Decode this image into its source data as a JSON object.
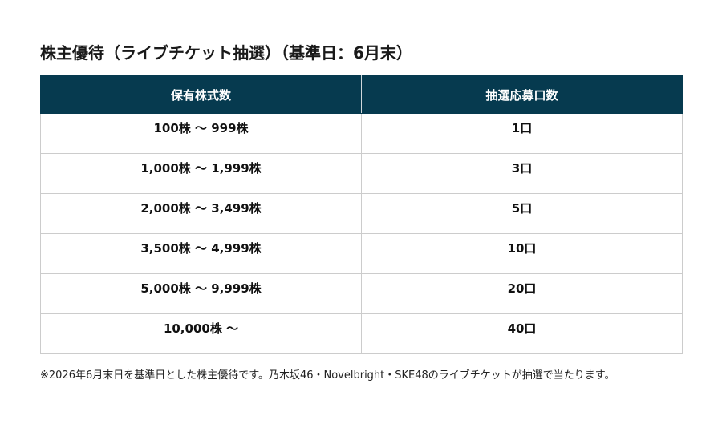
{
  "title": "株主優待（ライブチケット抽選）（基準日：6月末）",
  "table": {
    "headers": [
      "保有株式数",
      "抽選応募口数"
    ],
    "rows": [
      [
        "100株 〜 999株",
        "1口"
      ],
      [
        "1,000株 〜 1,999株",
        "3口"
      ],
      [
        "2,000株 〜 3,499株",
        "5口"
      ],
      [
        "3,500株 〜 4,999株",
        "10口"
      ],
      [
        "5,000株 〜 9,999株",
        "20口"
      ],
      [
        "10,000株 〜",
        "40口"
      ]
    ]
  },
  "footnote": "※2026年6月末日を基準日とした株主優待です。乃木坂46・Novelbright・SKE48のライブチケットが抽選で当たります。",
  "colors": {
    "header_background": "#063a4f",
    "header_text": "#ffffff",
    "border": "#cccccc"
  }
}
